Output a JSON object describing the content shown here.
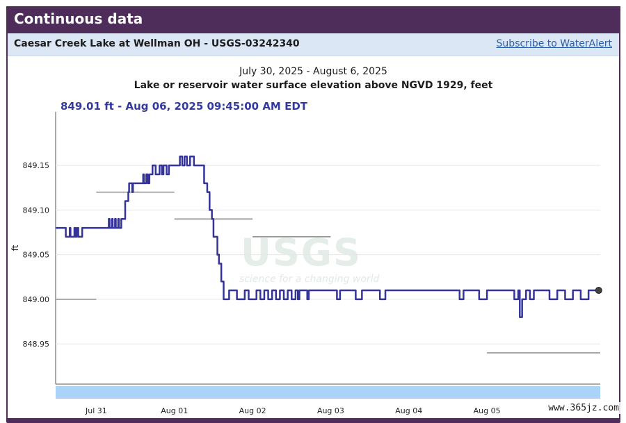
{
  "header": {
    "title": "Continuous data"
  },
  "site": {
    "name": "Caesar Creek Lake at Wellman OH - USGS-03242340",
    "subscribe_label": "Subscribe to WaterAlert"
  },
  "chart_data": {
    "type": "line",
    "title": "Lake or reservoir water surface elevation above NGVD 1929, feet",
    "subtitle": "July 30, 2025 - August 6, 2025",
    "readout": "849.01 ft - Aug 06, 2025 09:45:00 AM EDT",
    "ylabel": "ft",
    "xlabel": "",
    "yticks": [
      "849.15",
      "849.10",
      "849.05",
      "849.00",
      "848.95"
    ],
    "ytick_values": [
      849.15,
      849.1,
      849.05,
      849.0,
      848.95
    ],
    "ylim": [
      848.905,
      849.21
    ],
    "xticks": [
      "Jul 31",
      "Aug 01",
      "Aug 02",
      "Aug 03",
      "Aug 04",
      "Aug 05"
    ],
    "xtick_values": [
      1.0,
      2.0,
      3.0,
      4.0,
      5.0,
      6.0
    ],
    "xlim": [
      0.48,
      7.45
    ],
    "series": [
      {
        "color": "#333399",
        "x": [
          0.48,
          0.6,
          0.61,
          0.66,
          0.67,
          0.72,
          0.73,
          0.75,
          0.77,
          0.82,
          0.83,
          1.0,
          1.12,
          1.16,
          1.17,
          1.2,
          1.21,
          1.24,
          1.25,
          1.28,
          1.29,
          1.32,
          1.33,
          1.37,
          1.38,
          1.41,
          1.42,
          1.46,
          1.47,
          1.55,
          1.6,
          1.61,
          1.64,
          1.66,
          1.68,
          1.7,
          1.72,
          1.76,
          1.78,
          1.81,
          1.84,
          1.86,
          1.9,
          1.93,
          1.96,
          2.0,
          2.05,
          2.07,
          2.1,
          2.13,
          2.16,
          2.2,
          2.25,
          2.3,
          2.35,
          2.38,
          2.42,
          2.45,
          2.48,
          2.5,
          2.55,
          2.57,
          2.6,
          2.63,
          2.7,
          2.8,
          2.9,
          2.95,
          3.0,
          3.05,
          3.1,
          3.15,
          3.2,
          3.25,
          3.3,
          3.35,
          3.4,
          3.45,
          3.5,
          3.52,
          3.55,
          3.58,
          3.6,
          3.65,
          3.7,
          3.72,
          3.75,
          3.8,
          3.85,
          3.9,
          3.95,
          4.0,
          4.05,
          4.08,
          4.12,
          4.2,
          4.3,
          4.32,
          4.4,
          4.45,
          4.5,
          4.6,
          4.63,
          4.7,
          4.8,
          4.9,
          5.0,
          5.1,
          5.2,
          5.3,
          5.4,
          5.6,
          5.65,
          5.7,
          5.8,
          5.9,
          6.0,
          6.1,
          6.2,
          6.3,
          6.35,
          6.4,
          6.42,
          6.45,
          6.5,
          6.55,
          6.6,
          6.7,
          6.8,
          6.9,
          7.0,
          7.1,
          7.2,
          7.3,
          7.38,
          7.43
        ],
        "values": [
          849.08,
          849.08,
          849.07,
          849.08,
          849.07,
          849.08,
          849.07,
          849.08,
          849.07,
          849.08,
          849.08,
          849.08,
          849.08,
          849.09,
          849.08,
          849.09,
          849.08,
          849.09,
          849.08,
          849.09,
          849.08,
          849.09,
          849.09,
          849.11,
          849.11,
          849.12,
          849.13,
          849.12,
          849.13,
          849.13,
          849.14,
          849.13,
          849.14,
          849.13,
          849.14,
          849.14,
          849.15,
          849.14,
          849.14,
          849.15,
          849.14,
          849.15,
          849.14,
          849.15,
          849.15,
          849.15,
          849.15,
          849.16,
          849.15,
          849.16,
          849.15,
          849.16,
          849.15,
          849.15,
          849.15,
          849.13,
          849.12,
          849.1,
          849.09,
          849.07,
          849.05,
          849.04,
          849.02,
          849.0,
          849.01,
          849.0,
          849.01,
          849.0,
          849.0,
          849.01,
          849.0,
          849.01,
          849.0,
          849.01,
          849.0,
          849.01,
          849.0,
          849.01,
          849.0,
          849.0,
          849.01,
          849.0,
          849.01,
          849.01,
          849.0,
          849.01,
          849.01,
          849.01,
          849.01,
          849.01,
          849.01,
          849.01,
          849.01,
          849.0,
          849.01,
          849.01,
          849.01,
          849.0,
          849.01,
          849.01,
          849.01,
          849.01,
          849.0,
          849.01,
          849.01,
          849.01,
          849.01,
          849.01,
          849.01,
          849.01,
          849.01,
          849.01,
          849.0,
          849.01,
          849.01,
          849.0,
          849.01,
          849.01,
          849.01,
          849.01,
          849.0,
          849.01,
          848.98,
          849.0,
          849.01,
          849.0,
          849.01,
          849.01,
          849.0,
          849.01,
          849.0,
          849.01,
          849.0,
          849.01,
          849.01,
          849.01
        ]
      },
      {
        "color": "#888888",
        "segments": [
          {
            "x": [
              0.48,
              1.0
            ],
            "values": [
              849.0,
              849.0
            ]
          },
          {
            "x": [
              1.0,
              2.0
            ],
            "values": [
              849.12,
              849.12
            ]
          },
          {
            "x": [
              2.0,
              3.0
            ],
            "values": [
              849.09,
              849.09
            ]
          },
          {
            "x": [
              3.0,
              4.0
            ],
            "values": [
              849.07,
              849.07
            ]
          },
          {
            "x": [
              6.0,
              7.45
            ],
            "values": [
              848.94,
              848.94
            ]
          }
        ]
      }
    ],
    "grid": true,
    "watermark": "USGS",
    "watermark_tagline": "science for a changing world"
  },
  "badge": "www.365jz.com"
}
